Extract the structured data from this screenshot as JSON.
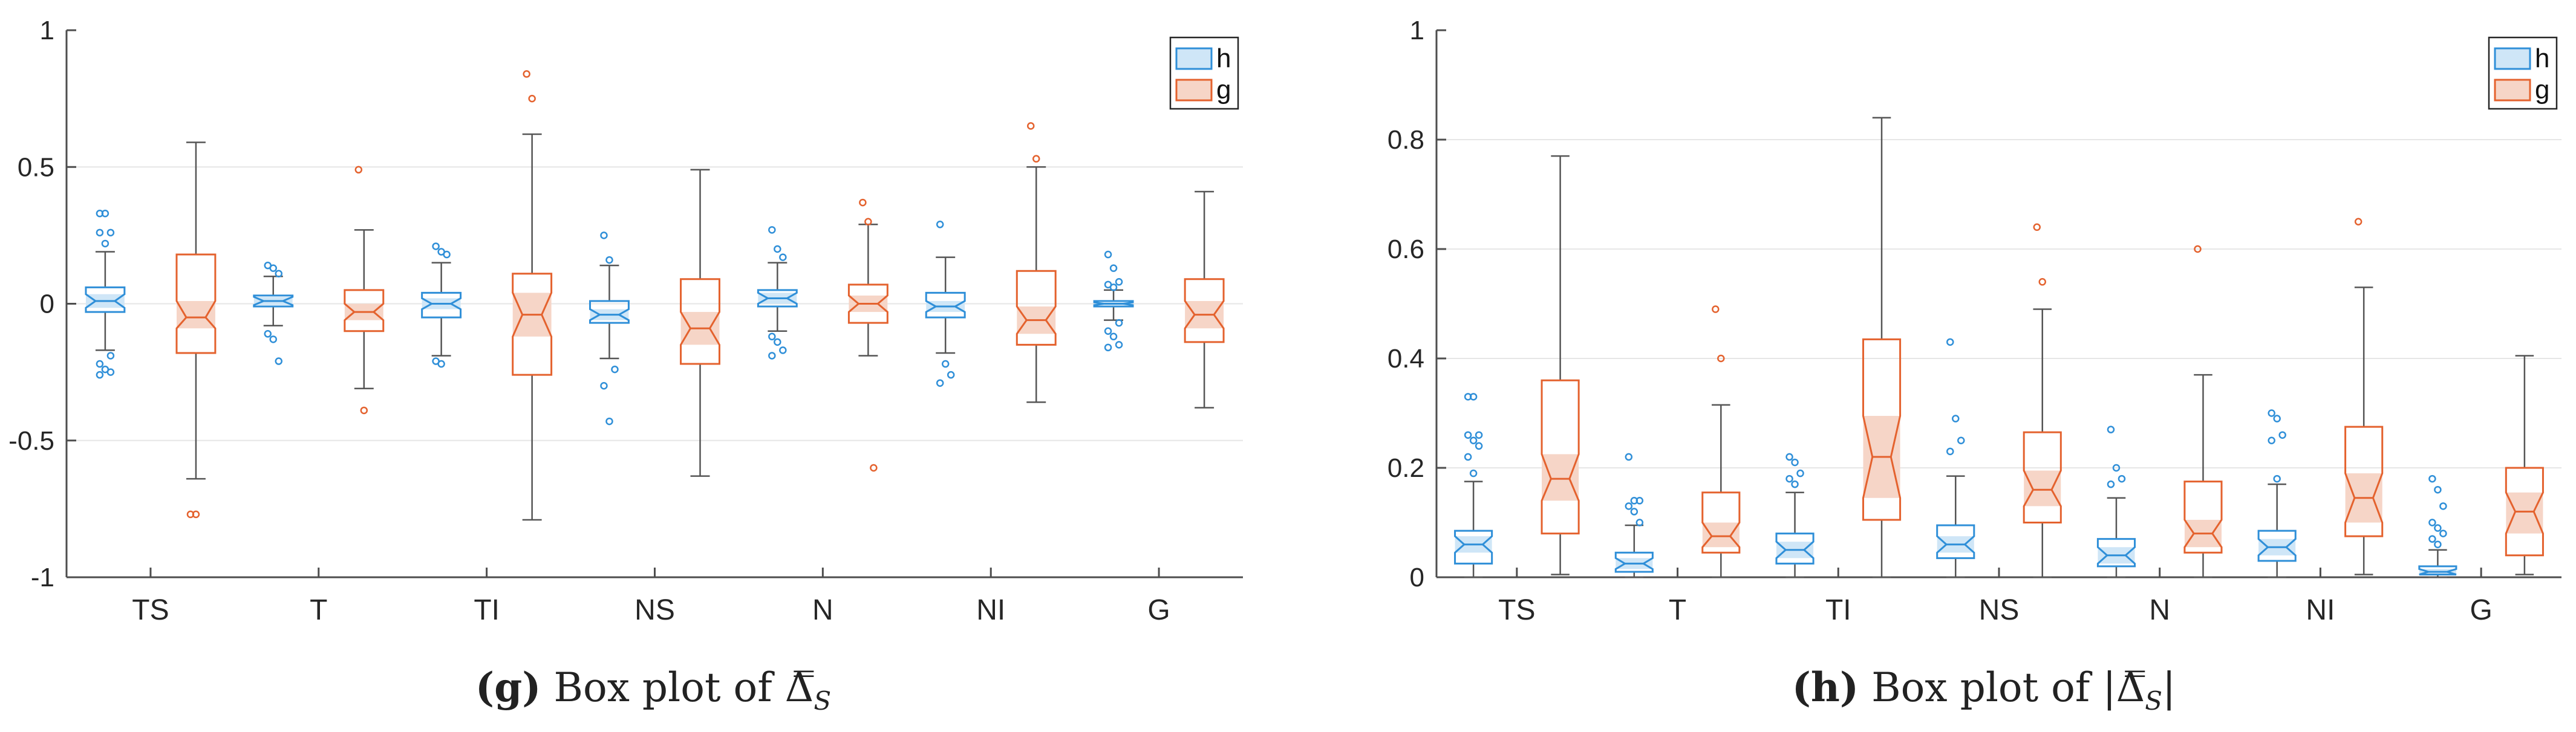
{
  "colors": {
    "h": "#2f8fd8",
    "g": "#e4622e",
    "h_fill": "#cfe6f7",
    "g_fill": "#f6d5c7",
    "whisker": "#555555",
    "grid": "#e6e6e6"
  },
  "captions": [
    {
      "label": "(g)",
      "text": "Box plot of ",
      "symbol": "Δ̿",
      "subscript": "S",
      "abs": false
    },
    {
      "label": "(h)",
      "text": "Box plot of ",
      "symbol": "Δ̿",
      "subscript": "S",
      "abs": true
    }
  ],
  "chart_data": [
    {
      "type": "boxplot",
      "title": "",
      "ylim": [
        -1,
        1
      ],
      "yticks": [
        -1,
        -0.5,
        0,
        0.5,
        1
      ],
      "ytick_labels": [
        "-1",
        "-0.5",
        "0",
        "0.5",
        "1"
      ],
      "grid": true,
      "legend": [
        "h",
        "g"
      ],
      "legend_placement": "top-right",
      "categories": [
        "TS",
        "T",
        "TI",
        "NS",
        "N",
        "NI",
        "G"
      ],
      "series": [
        {
          "name": "h",
          "boxes": [
            {
              "whislo": -0.17,
              "q1": -0.03,
              "med": 0.01,
              "q3": 0.06,
              "whishi": 0.19,
              "notch": [
                -0.015,
                0.035
              ],
              "fliers": [
                0.33,
                0.33,
                0.26,
                0.26,
                0.22,
                -0.19,
                -0.22,
                -0.24,
                -0.25,
                -0.26
              ]
            },
            {
              "whislo": -0.08,
              "q1": -0.01,
              "med": 0.01,
              "q3": 0.03,
              "whishi": 0.1,
              "notch": [
                -0.005,
                0.025
              ],
              "fliers": [
                0.14,
                0.13,
                0.11,
                -0.11,
                -0.13,
                -0.21
              ]
            },
            {
              "whislo": -0.19,
              "q1": -0.05,
              "med": 0.0,
              "q3": 0.04,
              "whishi": 0.15,
              "notch": [
                -0.02,
                0.02
              ],
              "fliers": [
                0.21,
                0.19,
                0.18,
                -0.21,
                -0.22
              ]
            },
            {
              "whislo": -0.2,
              "q1": -0.07,
              "med": -0.04,
              "q3": 0.01,
              "whishi": 0.14,
              "notch": [
                -0.06,
                -0.02
              ],
              "fliers": [
                0.25,
                0.16,
                -0.24,
                -0.3,
                -0.43
              ]
            },
            {
              "whislo": -0.1,
              "q1": -0.01,
              "med": 0.02,
              "q3": 0.05,
              "whishi": 0.15,
              "notch": [
                0.0,
                0.04
              ],
              "fliers": [
                0.27,
                0.2,
                0.17,
                -0.12,
                -0.14,
                -0.17,
                -0.19
              ]
            },
            {
              "whislo": -0.18,
              "q1": -0.05,
              "med": -0.01,
              "q3": 0.04,
              "whishi": 0.17,
              "notch": [
                -0.03,
                0.01
              ],
              "fliers": [
                0.29,
                -0.22,
                -0.26,
                -0.29
              ]
            },
            {
              "whislo": -0.06,
              "q1": -0.01,
              "med": 0.0,
              "q3": 0.01,
              "whishi": 0.05,
              "notch": [
                -0.005,
                0.005
              ],
              "fliers": [
                0.18,
                0.13,
                0.08,
                0.07,
                0.06,
                -0.07,
                -0.1,
                -0.12,
                -0.15,
                -0.16
              ]
            }
          ]
        },
        {
          "name": "g",
          "boxes": [
            {
              "whislo": -0.64,
              "q1": -0.18,
              "med": -0.05,
              "q3": 0.18,
              "whishi": 0.59,
              "notch": [
                -0.09,
                0.01
              ],
              "fliers": [
                -0.77,
                -0.77
              ]
            },
            {
              "whislo": -0.31,
              "q1": -0.1,
              "med": -0.03,
              "q3": 0.05,
              "whishi": 0.27,
              "notch": [
                -0.06,
                0.0
              ],
              "fliers": [
                0.49,
                -0.39
              ]
            },
            {
              "whislo": -0.79,
              "q1": -0.26,
              "med": -0.04,
              "q3": 0.11,
              "whishi": 0.62,
              "notch": [
                -0.12,
                0.04
              ],
              "fliers": [
                0.84,
                0.75
              ]
            },
            {
              "whislo": -0.63,
              "q1": -0.22,
              "med": -0.09,
              "q3": 0.09,
              "whishi": 0.49,
              "notch": [
                -0.15,
                -0.03
              ],
              "fliers": []
            },
            {
              "whislo": -0.19,
              "q1": -0.07,
              "med": 0.0,
              "q3": 0.07,
              "whishi": 0.29,
              "notch": [
                -0.03,
                0.03
              ],
              "fliers": [
                0.37,
                0.3,
                -0.6
              ]
            },
            {
              "whislo": -0.36,
              "q1": -0.15,
              "med": -0.06,
              "q3": 0.12,
              "whishi": 0.5,
              "notch": [
                -0.11,
                -0.01
              ],
              "fliers": [
                0.65,
                0.53
              ]
            },
            {
              "whislo": -0.38,
              "q1": -0.14,
              "med": -0.04,
              "q3": 0.09,
              "whishi": 0.41,
              "notch": [
                -0.09,
                0.01
              ],
              "fliers": []
            }
          ]
        }
      ]
    },
    {
      "type": "boxplot",
      "title": "",
      "ylim": [
        0,
        1
      ],
      "yticks": [
        0,
        0.2,
        0.4,
        0.6,
        0.8,
        1
      ],
      "ytick_labels": [
        "0",
        "0.2",
        "0.4",
        "0.6",
        "0.8",
        "1"
      ],
      "grid": true,
      "legend": [
        "h",
        "g"
      ],
      "legend_placement": "top-right",
      "categories": [
        "TS",
        "T",
        "TI",
        "NS",
        "N",
        "NI",
        "G"
      ],
      "series": [
        {
          "name": "h",
          "boxes": [
            {
              "whislo": 0.0,
              "q1": 0.025,
              "med": 0.06,
              "q3": 0.085,
              "whishi": 0.175,
              "notch": [
                0.045,
                0.075
              ],
              "fliers": [
                0.33,
                0.33,
                0.26,
                0.26,
                0.25,
                0.24,
                0.22,
                0.19
              ]
            },
            {
              "whislo": 0.0,
              "q1": 0.01,
              "med": 0.025,
              "q3": 0.045,
              "whishi": 0.095,
              "notch": [
                0.015,
                0.035
              ],
              "fliers": [
                0.22,
                0.14,
                0.14,
                0.13,
                0.12,
                0.1
              ]
            },
            {
              "whislo": 0.0,
              "q1": 0.025,
              "med": 0.05,
              "q3": 0.08,
              "whishi": 0.155,
              "notch": [
                0.035,
                0.065
              ],
              "fliers": [
                0.22,
                0.21,
                0.19,
                0.18,
                0.17
              ]
            },
            {
              "whislo": 0.0,
              "q1": 0.035,
              "med": 0.06,
              "q3": 0.095,
              "whishi": 0.185,
              "notch": [
                0.045,
                0.075
              ],
              "fliers": [
                0.43,
                0.29,
                0.25,
                0.23
              ]
            },
            {
              "whislo": 0.0,
              "q1": 0.02,
              "med": 0.04,
              "q3": 0.07,
              "whishi": 0.145,
              "notch": [
                0.025,
                0.055
              ],
              "fliers": [
                0.27,
                0.2,
                0.18,
                0.17
              ]
            },
            {
              "whislo": 0.0,
              "q1": 0.03,
              "med": 0.055,
              "q3": 0.085,
              "whishi": 0.17,
              "notch": [
                0.04,
                0.07
              ],
              "fliers": [
                0.3,
                0.29,
                0.26,
                0.25,
                0.18
              ]
            },
            {
              "whislo": 0.0,
              "q1": 0.005,
              "med": 0.01,
              "q3": 0.02,
              "whishi": 0.05,
              "notch": [
                0.005,
                0.015
              ],
              "fliers": [
                0.18,
                0.16,
                0.13,
                0.1,
                0.09,
                0.08,
                0.07,
                0.06
              ]
            }
          ]
        },
        {
          "name": "g",
          "boxes": [
            {
              "whislo": 0.005,
              "q1": 0.08,
              "med": 0.18,
              "q3": 0.36,
              "whishi": 0.77,
              "notch": [
                0.14,
                0.225
              ],
              "fliers": []
            },
            {
              "whislo": 0.0,
              "q1": 0.045,
              "med": 0.075,
              "q3": 0.155,
              "whishi": 0.315,
              "notch": [
                0.055,
                0.1
              ],
              "fliers": [
                0.49,
                0.4
              ]
            },
            {
              "whislo": 0.0,
              "q1": 0.105,
              "med": 0.22,
              "q3": 0.435,
              "whishi": 0.84,
              "notch": [
                0.145,
                0.295
              ],
              "fliers": []
            },
            {
              "whislo": 0.0,
              "q1": 0.1,
              "med": 0.16,
              "q3": 0.265,
              "whishi": 0.49,
              "notch": [
                0.13,
                0.195
              ],
              "fliers": [
                0.64,
                0.54
              ]
            },
            {
              "whislo": 0.0,
              "q1": 0.045,
              "med": 0.08,
              "q3": 0.175,
              "whishi": 0.37,
              "notch": [
                0.055,
                0.105
              ],
              "fliers": [
                0.6
              ]
            },
            {
              "whislo": 0.005,
              "q1": 0.075,
              "med": 0.145,
              "q3": 0.275,
              "whishi": 0.53,
              "notch": [
                0.1,
                0.19
              ],
              "fliers": [
                0.65
              ]
            },
            {
              "whislo": 0.005,
              "q1": 0.04,
              "med": 0.12,
              "q3": 0.2,
              "whishi": 0.405,
              "notch": [
                0.08,
                0.155
              ],
              "fliers": []
            }
          ]
        }
      ]
    }
  ]
}
